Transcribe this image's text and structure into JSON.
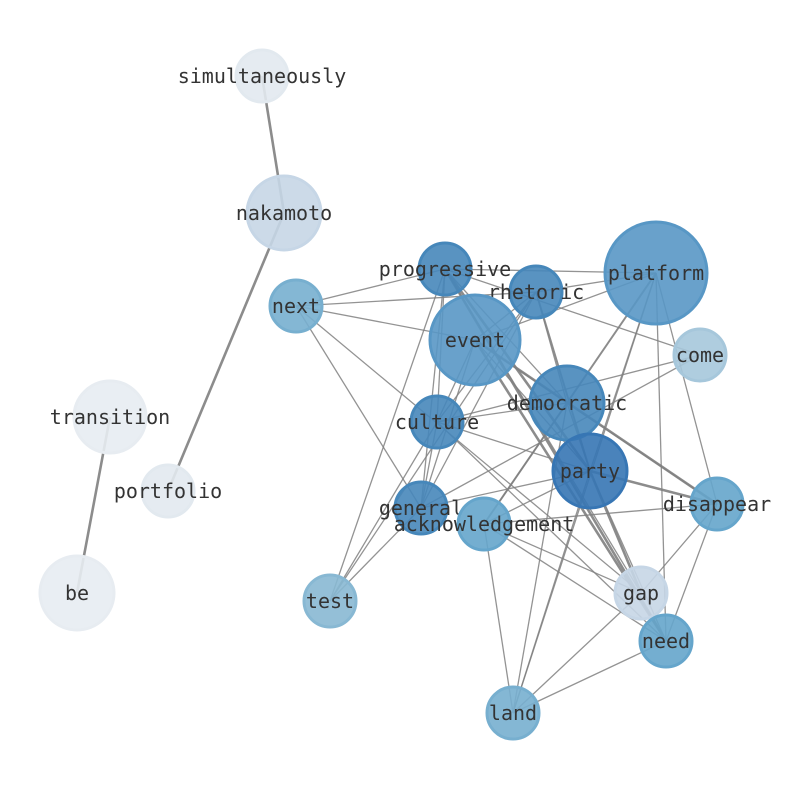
{
  "nodes": [
    {
      "id": "simultaneously",
      "label": "simultaneously",
      "color": "#eef5fc"
    },
    {
      "id": "nakamoto",
      "label": "nakamoto",
      "color": "#d0e1f2"
    },
    {
      "id": "transition",
      "label": "transition",
      "color": "#f3f8fe"
    },
    {
      "id": "portfolio",
      "label": "portfolio",
      "color": "#eef5fc"
    },
    {
      "id": "be",
      "label": "be",
      "color": "#f3f8fe"
    },
    {
      "id": "progressive",
      "label": "progressive",
      "color": "#4a8ec4"
    },
    {
      "id": "rhetoric",
      "label": "rhetoric",
      "color": "#4a8ec4"
    },
    {
      "id": "platform",
      "label": "platform",
      "color": "#5d9fcf"
    },
    {
      "id": "next",
      "label": "next",
      "color": "#7db8da"
    },
    {
      "id": "event",
      "label": "event",
      "color": "#5d9fcf"
    },
    {
      "id": "come",
      "label": "come",
      "color": "#afd1e7"
    },
    {
      "id": "culture",
      "label": "culture",
      "color": "#4a8ec4"
    },
    {
      "id": "democratic",
      "label": "democratic",
      "color": "#4a8ec4"
    },
    {
      "id": "party",
      "label": "party",
      "color": "#3a7cbe"
    },
    {
      "id": "general",
      "label": "general",
      "color": "#4a8ec4"
    },
    {
      "id": "acknowledgement",
      "label": "acknowledgement",
      "color": "#6aaed6"
    },
    {
      "id": "disappear",
      "label": "disappear",
      "color": "#6aaed6"
    },
    {
      "id": "test",
      "label": "test",
      "color": "#8fc2de"
    },
    {
      "id": "gap",
      "label": "gap",
      "color": "#d0e1f2"
    },
    {
      "id": "need",
      "label": "need",
      "color": "#6aaed6"
    },
    {
      "id": "land",
      "label": "land",
      "color": "#7db8da"
    }
  ],
  "edge_color": "#808080",
  "edges": [
    [
      "simultaneously",
      "nakamoto",
      2
    ],
    [
      "nakamoto",
      "portfolio",
      2
    ],
    [
      "transition",
      "be",
      2
    ],
    [
      "next",
      "progressive",
      1
    ],
    [
      "next",
      "rhetoric",
      1
    ],
    [
      "next",
      "event",
      1
    ],
    [
      "next",
      "general",
      1
    ],
    [
      "next",
      "gap",
      1
    ],
    [
      "progressive",
      "platform",
      1
    ],
    [
      "progressive",
      "come",
      1
    ],
    [
      "progressive",
      "culture",
      1
    ],
    [
      "progressive",
      "general",
      1
    ],
    [
      "progressive",
      "test",
      1
    ],
    [
      "progressive",
      "democratic",
      1
    ],
    [
      "progressive",
      "party",
      2
    ],
    [
      "progressive",
      "need",
      2
    ],
    [
      "progressive",
      "gap",
      1
    ],
    [
      "rhetoric",
      "platform",
      1
    ],
    [
      "rhetoric",
      "culture",
      1
    ],
    [
      "rhetoric",
      "general",
      1
    ],
    [
      "rhetoric",
      "test",
      1
    ],
    [
      "rhetoric",
      "event",
      1
    ],
    [
      "rhetoric",
      "party",
      1.5
    ],
    [
      "rhetoric",
      "democratic",
      1
    ],
    [
      "platform",
      "event",
      1
    ],
    [
      "platform",
      "acknowledgement",
      1.5
    ],
    [
      "platform",
      "land",
      1
    ],
    [
      "platform",
      "need",
      1
    ],
    [
      "platform",
      "disappear",
      1
    ],
    [
      "platform",
      "party",
      1
    ],
    [
      "event",
      "democratic",
      1
    ],
    [
      "event",
      "party",
      1
    ],
    [
      "event",
      "disappear",
      2
    ],
    [
      "event",
      "general",
      1
    ],
    [
      "event",
      "culture",
      1
    ],
    [
      "event",
      "need",
      2
    ],
    [
      "come",
      "culture",
      1
    ],
    [
      "come",
      "general",
      1
    ],
    [
      "culture",
      "democratic",
      1
    ],
    [
      "culture",
      "party",
      1
    ],
    [
      "culture",
      "need",
      1
    ],
    [
      "culture",
      "general",
      1
    ],
    [
      "culture",
      "test",
      1
    ],
    [
      "democratic",
      "party",
      1
    ],
    [
      "democratic",
      "disappear",
      1
    ],
    [
      "democratic",
      "acknowledgement",
      1
    ],
    [
      "democratic",
      "land",
      1
    ],
    [
      "party",
      "disappear",
      2
    ],
    [
      "party",
      "general",
      1
    ],
    [
      "party",
      "acknowledgement",
      1
    ],
    [
      "party",
      "gap",
      2
    ],
    [
      "party",
      "need",
      1
    ],
    [
      "party",
      "land",
      1
    ],
    [
      "acknowledgement",
      "disappear",
      1
    ],
    [
      "acknowledgement",
      "gap",
      1
    ],
    [
      "acknowledgement",
      "need",
      1
    ],
    [
      "acknowledgement",
      "land",
      1
    ],
    [
      "disappear",
      "gap",
      1
    ],
    [
      "disappear",
      "need",
      1
    ],
    [
      "gap",
      "land",
      1
    ],
    [
      "need",
      "land",
      1
    ],
    [
      "general",
      "test",
      1
    ]
  ]
}
